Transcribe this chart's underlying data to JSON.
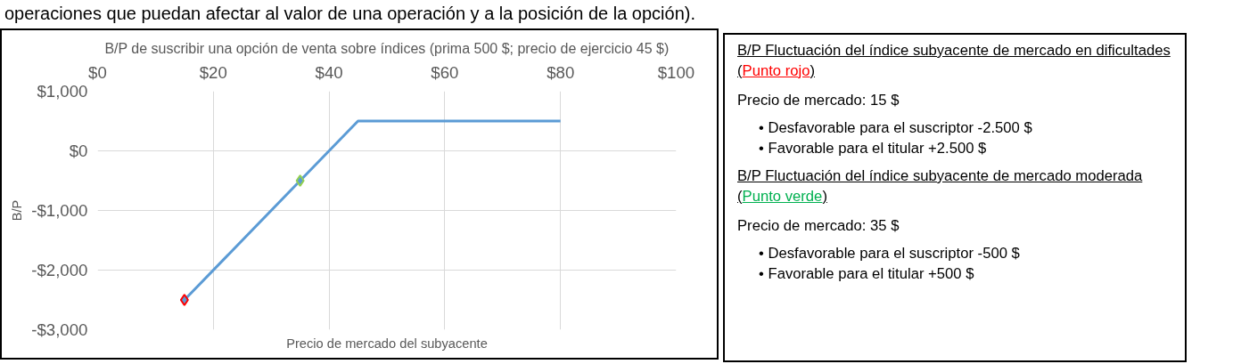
{
  "chart_data": [
    {
      "type": "line",
      "title": "B/P de suscribir una opción de venta sobre índices (prima 500 $; precio de ejercicio 45 $)",
      "xlabel": "Precio de mercado del subyacente",
      "ylabel": "B/P",
      "annotations": [
        "operaciones que puedan afectar al valor de una operación y a la posición de la opción)."
      ],
      "series": [
        {
          "color": "#5b9bd5",
          "x": [
            15,
            35,
            45,
            80
          ],
          "values": [
            -2500,
            -500,
            500,
            500
          ],
          "marker": "none"
        },
        {
          "type": "scatter",
          "color": "#ff0000",
          "x": [
            15
          ],
          "values": [
            -2500
          ],
          "marker": "diamond"
        },
        {
          "type": "scatter",
          "color": "#92d050",
          "x": [
            35
          ],
          "values": [
            -500
          ],
          "marker": "diamond"
        }
      ],
      "xlim": [
        0,
        100
      ],
      "xticks": [
        {
          "value": 0,
          "label": "$0"
        },
        {
          "value": 20,
          "label": "$20"
        },
        {
          "value": 40,
          "label": "$40"
        },
        {
          "value": 60,
          "label": "$60"
        },
        {
          "value": 80,
          "label": "$80"
        },
        {
          "value": 100,
          "label": "$100"
        }
      ],
      "ylim": [
        -3000,
        1000
      ],
      "yticks": [
        {
          "value": -3000,
          "label": "-$3,000"
        },
        {
          "value": -2000,
          "label": "-$2,000"
        },
        {
          "value": -1000,
          "label": "-$1,000"
        },
        {
          "value": 0,
          "label": "$0"
        },
        {
          "value": 1000,
          "label": "$1,000"
        }
      ],
      "grid": true
    },
    {
      "type": "other",
      "annotations": [
        "B/P Fluctuación del índice subyacente de mercado en dificultades (",
        "Punto rojo",
        ")",
        "Precio de mercado: 15 $",
        "• Desfavorable para el suscriptor -2.500 $",
        "• Favorable para el titular +2.500 $",
        "B/P Fluctuación del índice subyacente de mercado moderada (",
        "Punto verde",
        ")",
        "Precio de mercado: 35 $",
        "• Desfavorable para el suscriptor -500 $",
        "• Favorable para el titular +500 $"
      ],
      "colors": [
        "#000000",
        "#ff0000",
        "#000000",
        "#000000",
        "#000000",
        "#000000",
        "#000000",
        "#00b050",
        "#000000",
        "#000000",
        "#000000",
        "#000000"
      ]
    }
  ]
}
